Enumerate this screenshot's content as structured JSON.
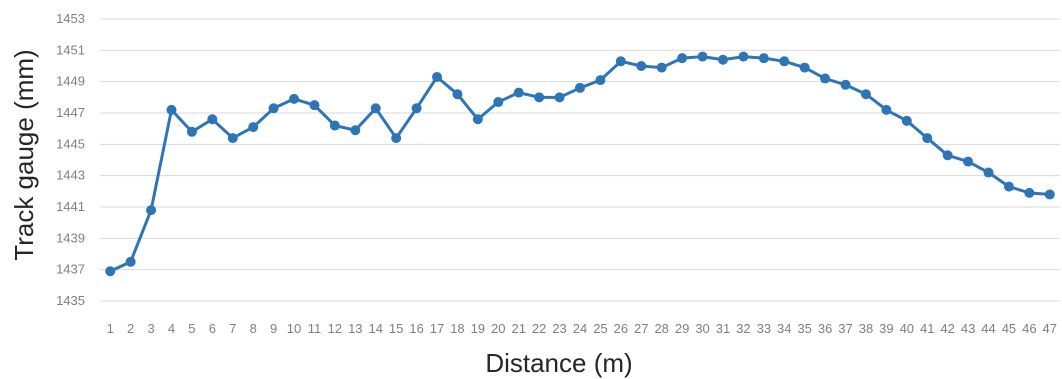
{
  "chart_data": {
    "type": "line",
    "title": "",
    "xlabel": "Distance (m)",
    "ylabel": "Track gauge (mm)",
    "x": [
      1,
      2,
      3,
      4,
      5,
      6,
      7,
      8,
      9,
      10,
      11,
      12,
      13,
      14,
      15,
      16,
      17,
      18,
      19,
      20,
      21,
      22,
      23,
      24,
      25,
      26,
      27,
      28,
      29,
      30,
      31,
      32,
      33,
      34,
      35,
      36,
      37,
      38,
      39,
      40,
      41,
      42,
      43,
      44,
      45,
      46,
      47
    ],
    "x_tick_labels": [
      "1",
      "2",
      "3",
      "4",
      "5",
      "6",
      "7",
      "8",
      "9",
      "10",
      "11",
      "12",
      "13",
      "14",
      "15",
      "16",
      "17",
      "18",
      "19",
      "20",
      "21",
      "22",
      "23",
      "24",
      "25",
      "26",
      "27",
      "28",
      "29",
      "30",
      "31",
      "32",
      "33",
      "34",
      "35",
      "36",
      "37",
      "38",
      "39",
      "40",
      "41",
      "42",
      "43",
      "44",
      "45",
      "46",
      "47"
    ],
    "series": [
      {
        "values": [
          1436.9,
          1437.5,
          1440.8,
          1447.2,
          1445.8,
          1446.6,
          1445.4,
          1446.1,
          1447.3,
          1447.9,
          1447.5,
          1446.2,
          1445.9,
          1447.3,
          1445.4,
          1447.3,
          1449.3,
          1448.2,
          1446.6,
          1447.7,
          1448.3,
          1448.0,
          1448.0,
          1448.6,
          1449.1,
          1450.3,
          1450.0,
          1449.9,
          1450.5,
          1450.6,
          1450.4,
          1450.6,
          1450.5,
          1450.3,
          1449.9,
          1449.2,
          1448.8,
          1448.2,
          1447.2,
          1446.5,
          1445.4,
          1444.3,
          1443.9,
          1443.2,
          1442.3,
          1441.9,
          1441.8
        ],
        "color": "#2e75b6"
      }
    ],
    "ylim": [
      1435,
      1453
    ],
    "y_ticks": [
      1435,
      1437,
      1439,
      1441,
      1443,
      1445,
      1447,
      1449,
      1451,
      1453
    ],
    "grid": true,
    "legend": "none"
  }
}
